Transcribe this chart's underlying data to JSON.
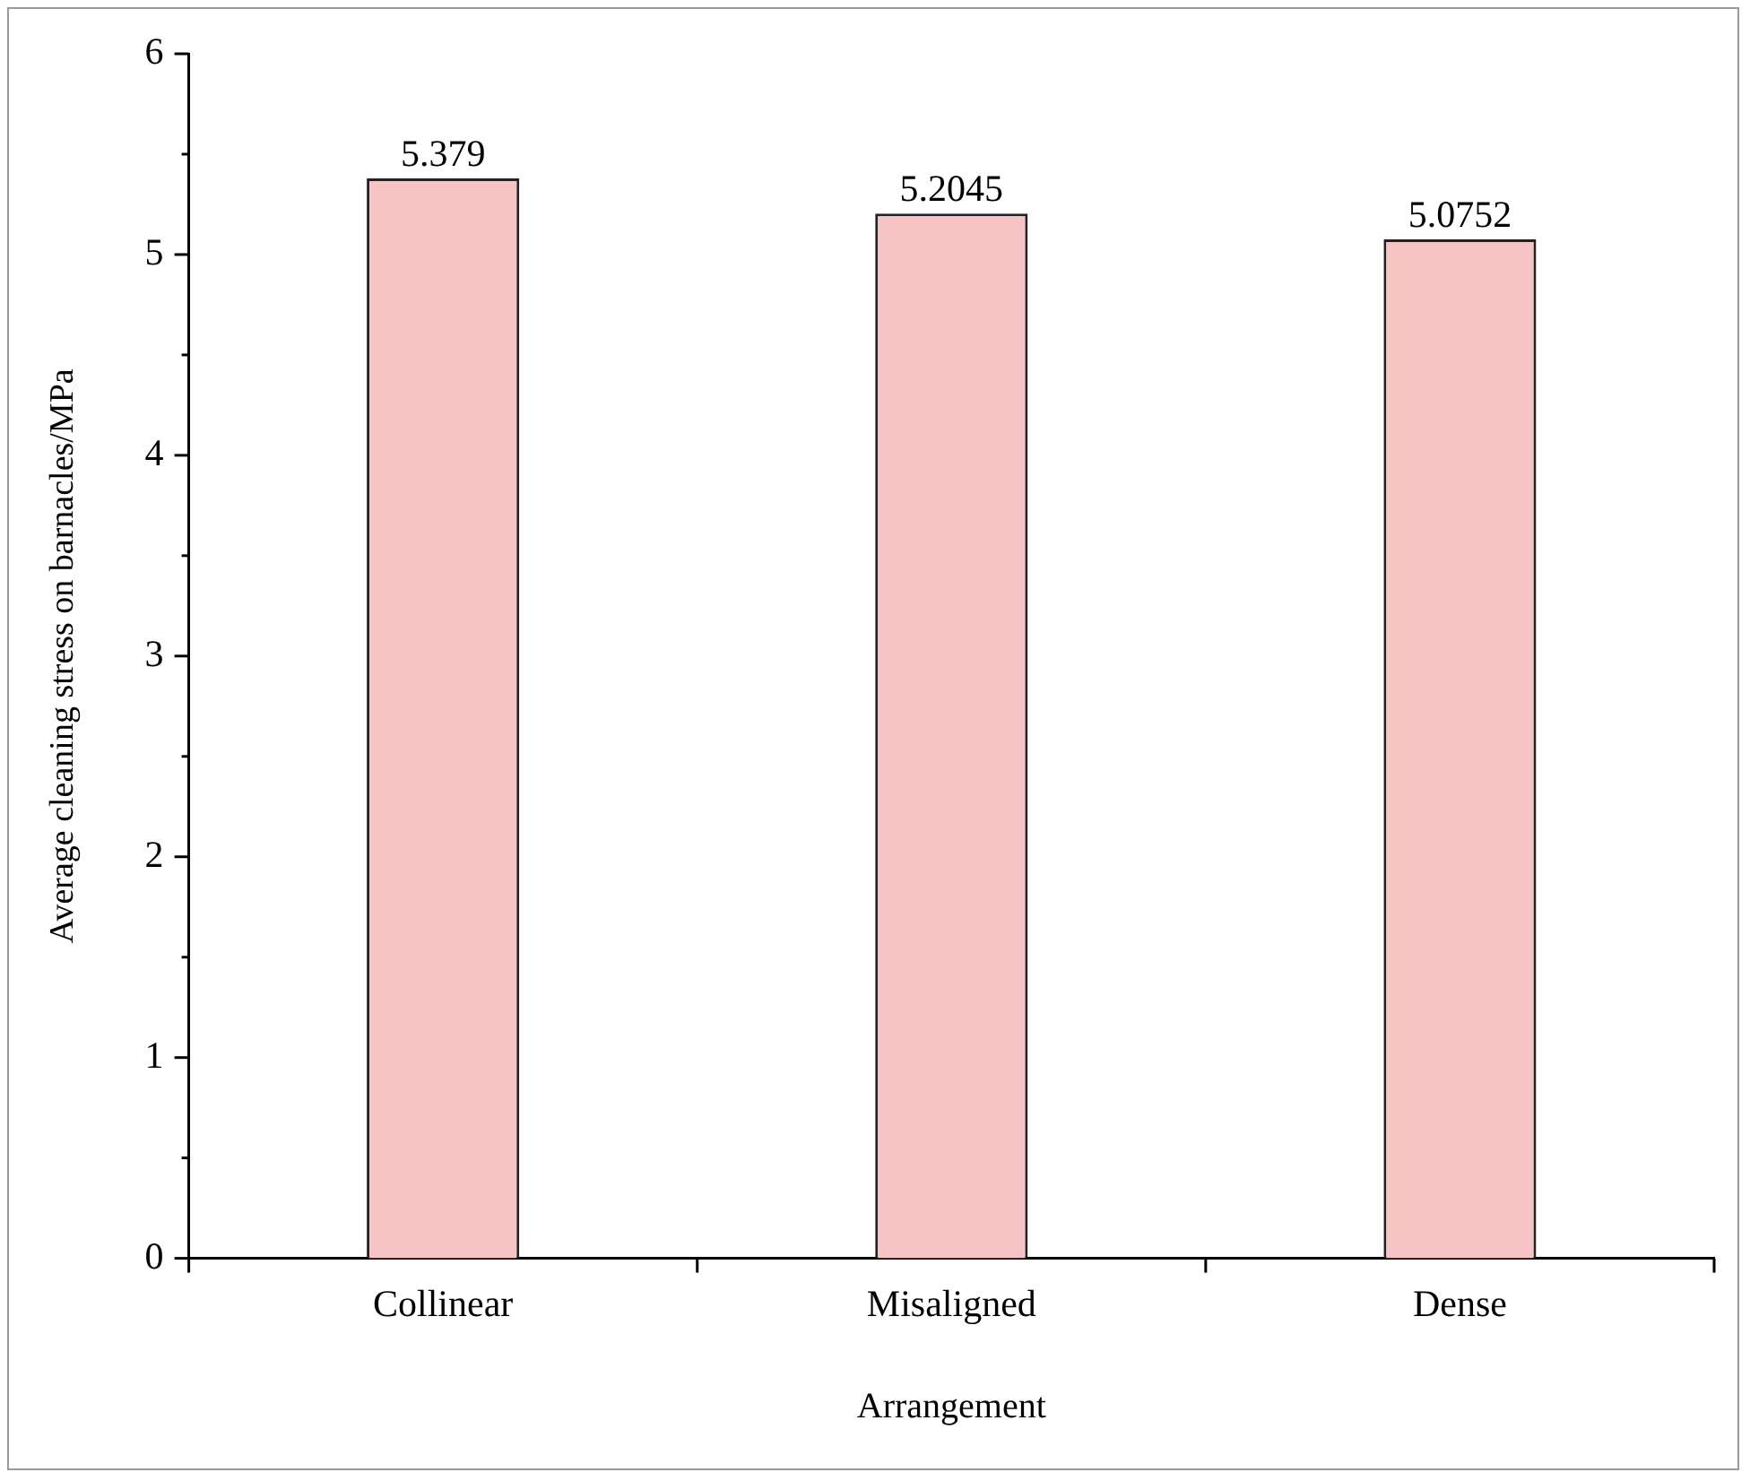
{
  "chart_data": {
    "type": "bar",
    "xlabel": "Arrangement",
    "ylabel": "Average cleaning stress on barnacles/MPa",
    "categories": [
      "Collinear",
      "Misaligned",
      "Dense"
    ],
    "values": [
      5.379,
      5.2045,
      5.0752
    ],
    "color": "#f7c4c6",
    "ylim": [
      0,
      6
    ],
    "yticks": [
      0,
      {
        "value": 0.5,
        "label": null
      },
      1,
      {
        "value": 1.5,
        "label": null
      },
      2,
      {
        "value": 2.5,
        "label": null
      },
      3,
      {
        "value": 3.5,
        "label": null
      },
      4,
      {
        "value": 4.5,
        "label": null
      },
      5,
      {
        "value": 5.5,
        "label": null
      },
      6
    ],
    "data_labels": true,
    "grid": false,
    "legend": false
  }
}
